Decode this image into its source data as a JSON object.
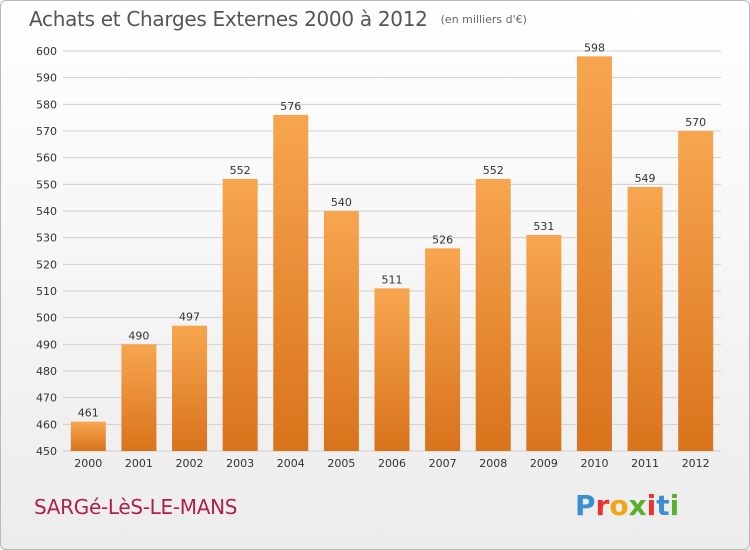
{
  "header": {
    "title": "Achats et Charges Externes 2000 à 2012",
    "subtitle": "(en milliers d'€)"
  },
  "footer": {
    "commune": "SARGé-LèS-LE-MANS"
  },
  "logo": {
    "text": "Proxiti",
    "letters": [
      "P",
      "r",
      "o",
      "x",
      "i",
      "t",
      "i"
    ],
    "letter_colors": [
      "#3a8fd4",
      "#e8342c",
      "#f2a516",
      "#5aae2e",
      "#e8342c",
      "#3a8fd4",
      "#5aae2e"
    ]
  },
  "colors": {
    "bar_top": "#f7a64f",
    "bar_bottom": "#d9731c",
    "grid": "#cfcfcf",
    "axis_text": "#333333"
  },
  "chart_data": {
    "type": "bar",
    "categories": [
      "2000",
      "2001",
      "2002",
      "2003",
      "2004",
      "2005",
      "2006",
      "2007",
      "2008",
      "2009",
      "2010",
      "2011",
      "2012"
    ],
    "values": [
      461,
      490,
      497,
      552,
      576,
      540,
      511,
      526,
      552,
      531,
      598,
      549,
      570
    ],
    "title": "Achats et Charges Externes 2000 à 2012",
    "subtitle": "(en milliers d'€)",
    "ylim": [
      450,
      600
    ],
    "yticks": [
      450,
      460,
      470,
      480,
      490,
      500,
      510,
      520,
      530,
      540,
      550,
      560,
      570,
      580,
      590,
      600
    ],
    "grid": true,
    "data_labels": true
  }
}
